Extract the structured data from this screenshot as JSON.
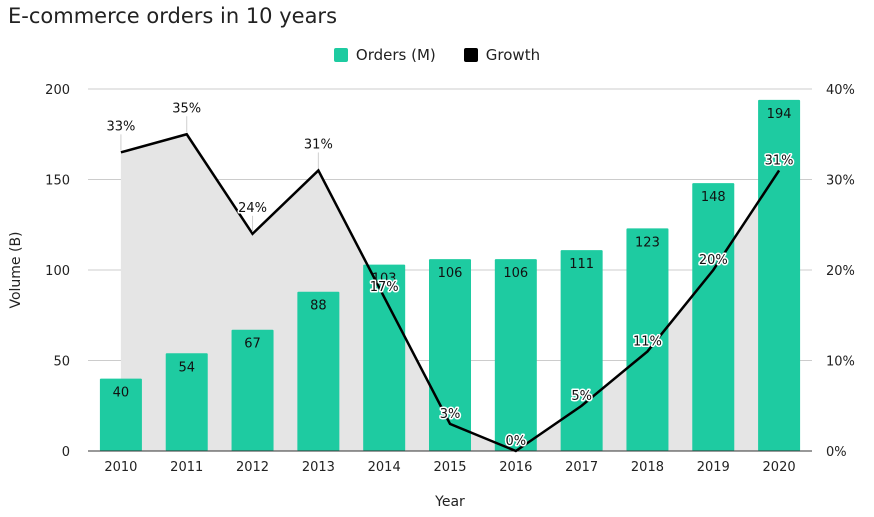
{
  "chart_data": {
    "type": "bar",
    "title": "E-commerce orders in 10 years",
    "xlabel": "Year",
    "ylabel": "Volume (B)",
    "categories": [
      "2010",
      "2011",
      "2012",
      "2013",
      "2014",
      "2015",
      "2016",
      "2017",
      "2018",
      "2019",
      "2020"
    ],
    "series": [
      {
        "name": "Orders (M)",
        "type": "bar",
        "axis": "left",
        "color": "#1ecba1",
        "values": [
          40,
          54,
          67,
          88,
          103,
          106,
          106,
          111,
          123,
          148,
          194
        ],
        "labels": [
          "40",
          "54",
          "67",
          "88",
          "103",
          "106",
          "106",
          "111",
          "123",
          "148",
          "194"
        ]
      },
      {
        "name": "Growth",
        "type": "line",
        "axis": "right",
        "color": "#000000",
        "values": [
          33,
          35,
          24,
          31,
          17,
          3,
          0,
          5,
          11,
          20,
          31
        ],
        "labels": [
          "33%",
          "35%",
          "24%",
          "31%",
          "17%",
          "3%",
          "0%",
          "5%",
          "11%",
          "20%",
          "31%"
        ]
      }
    ],
    "y_left": {
      "range": [
        0,
        200
      ],
      "ticks": [
        "0",
        "50",
        "100",
        "150",
        "200"
      ]
    },
    "y_right": {
      "range": [
        0,
        40
      ],
      "ticks": [
        "0%",
        "10%",
        "20%",
        "30%",
        "40%"
      ]
    },
    "area_fill": "#e5e5e5",
    "grid": true,
    "legend": "top-center"
  }
}
